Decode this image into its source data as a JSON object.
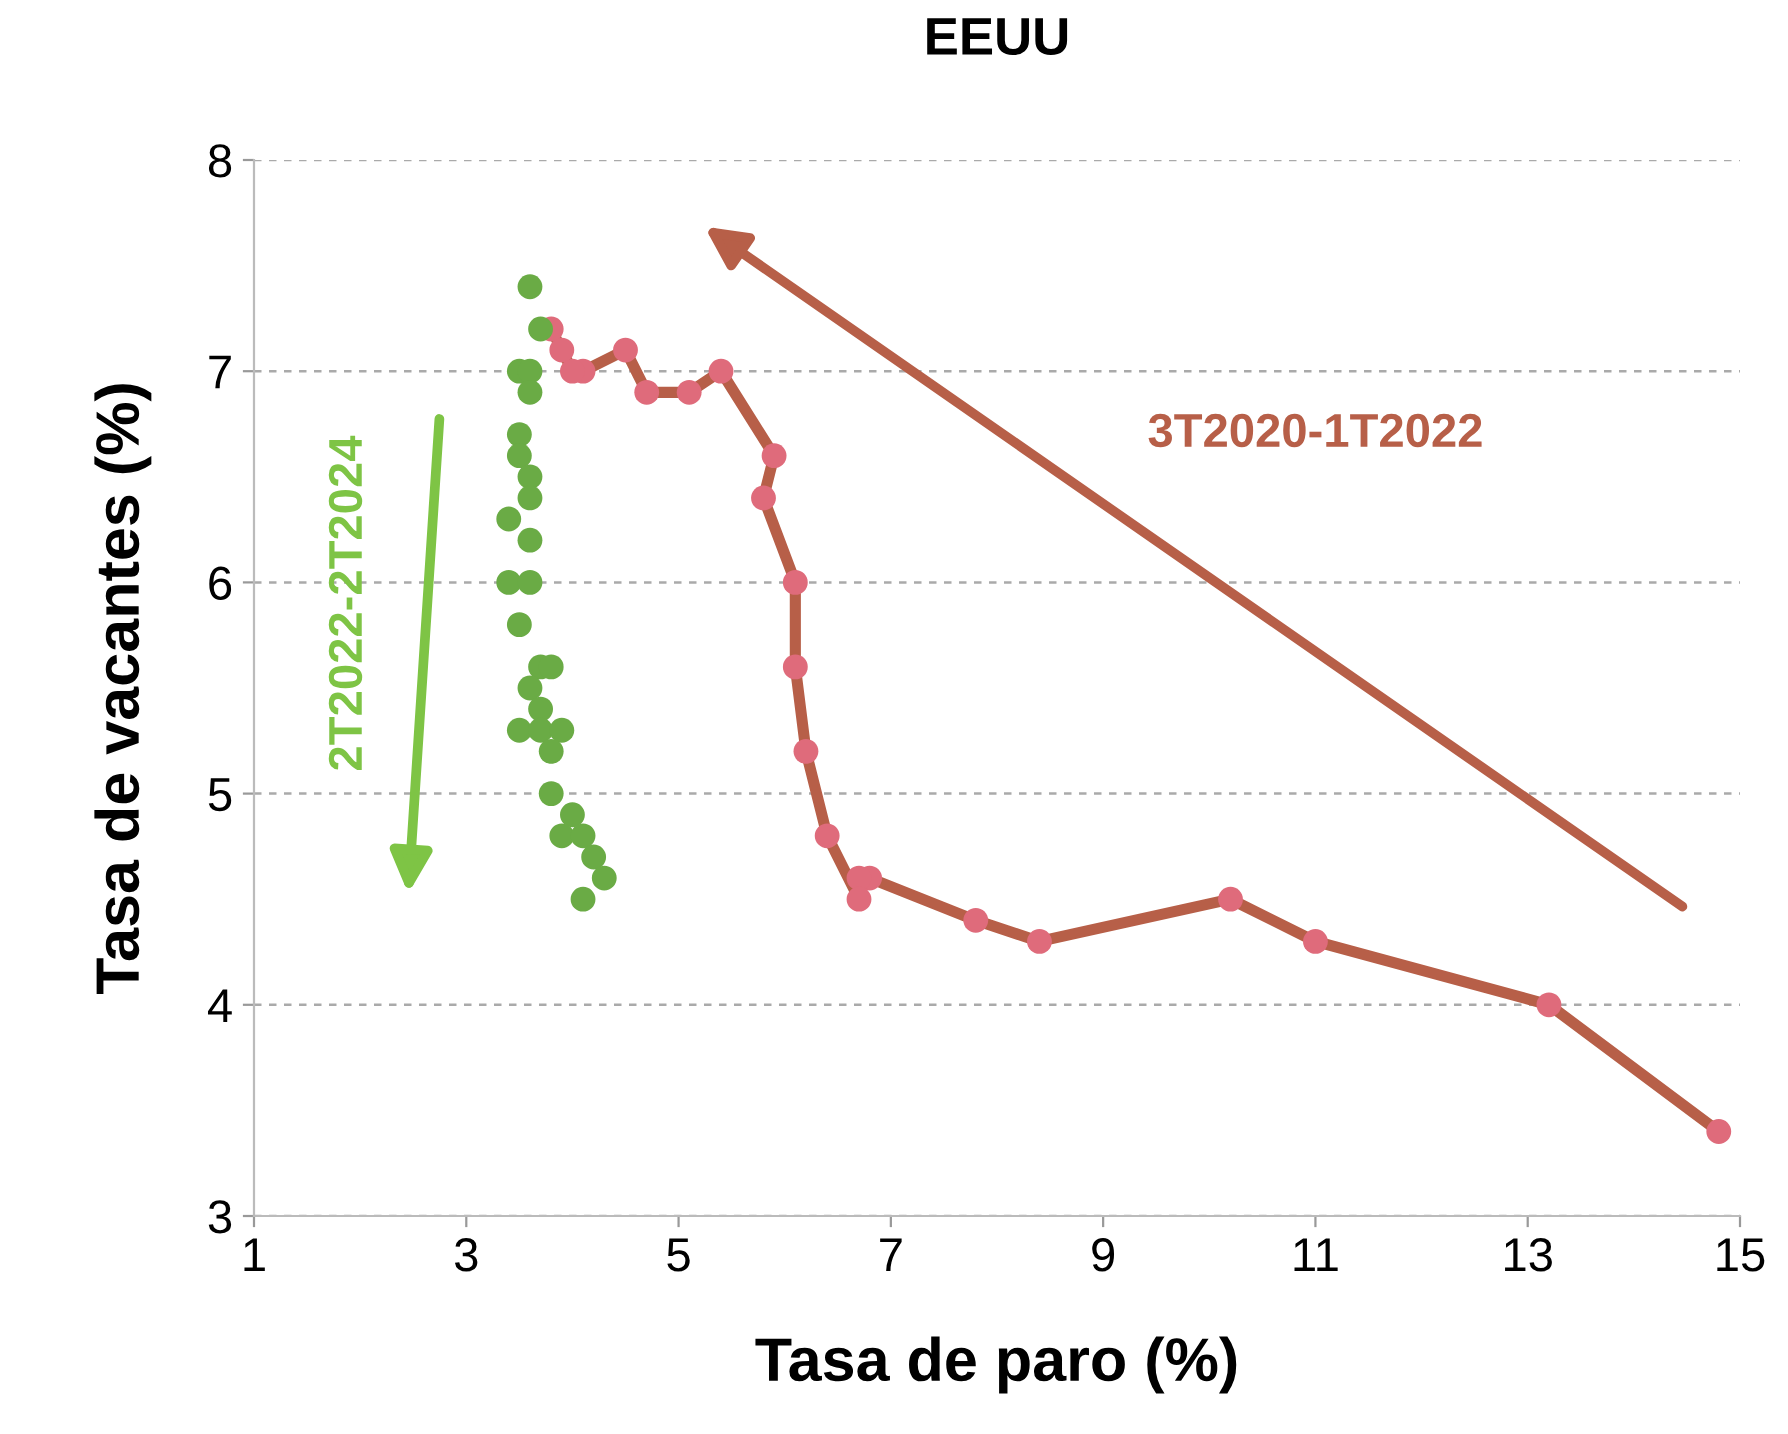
{
  "chart_data": {
    "type": "scatter",
    "title": "EEUU",
    "xlabel": "Tasa de paro (%)",
    "ylabel": "Tasa de vacantes (%)",
    "xlim": [
      1,
      15
    ],
    "xticks": [
      1,
      3,
      5,
      7,
      9,
      11,
      13,
      15
    ],
    "ylim": [
      3,
      8
    ],
    "yticks": [
      3,
      4,
      5,
      6,
      7,
      8
    ],
    "grid": "y",
    "marker": "circle",
    "legend": false,
    "series": [
      {
        "type": "line",
        "color": "#df6b7b",
        "x": [
          14.8,
          13.2,
          11.0,
          10.2,
          8.4,
          7.8,
          6.8,
          6.7,
          6.7,
          6.4,
          6.2,
          6.1,
          6.1,
          5.8,
          5.9,
          5.4,
          5.1,
          4.7,
          4.5,
          4.1,
          4.0,
          3.9,
          3.8
        ],
        "values": [
          3.4,
          4.0,
          4.3,
          4.5,
          4.3,
          4.4,
          4.6,
          4.6,
          4.5,
          4.8,
          5.2,
          5.6,
          6.0,
          6.4,
          6.6,
          7.0,
          6.9,
          6.9,
          7.1,
          7.0,
          7.0,
          7.1,
          7.2
        ]
      },
      {
        "color": "#6aab45",
        "x": [
          3.6,
          3.7,
          3.5,
          3.6,
          3.6,
          3.5,
          3.5,
          3.6,
          3.6,
          3.4,
          3.6,
          3.4,
          3.6,
          3.5,
          3.7,
          3.8,
          3.6,
          3.7,
          3.5,
          3.7,
          3.9,
          3.8,
          3.8,
          4.0,
          3.9,
          4.1,
          4.2,
          4.3,
          4.1
        ],
        "values": [
          7.4,
          7.2,
          7.0,
          7.0,
          6.9,
          6.7,
          6.6,
          6.5,
          6.4,
          6.3,
          6.2,
          6.0,
          6.0,
          5.8,
          5.6,
          5.6,
          5.5,
          5.4,
          5.3,
          5.3,
          5.3,
          5.2,
          5.0,
          4.9,
          4.8,
          4.8,
          4.7,
          4.6,
          4.5
        ]
      }
    ],
    "annotations": [
      "3T2020-1T2022",
      "2T2022-2T2024"
    ]
  }
}
